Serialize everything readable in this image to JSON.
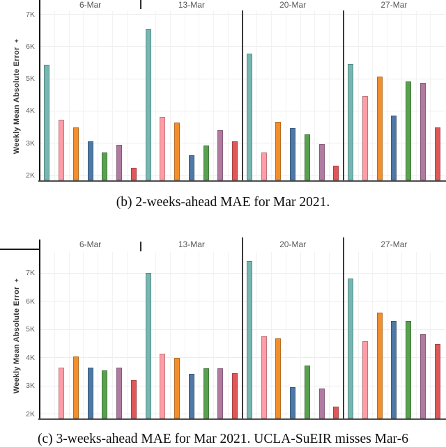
{
  "page": {
    "background": "#ffffff"
  },
  "chart_data": [
    {
      "type": "bar",
      "title": "",
      "caption": "(b) 2-weeks-ahead MAE for Mar 2021.",
      "ylabel": "Weekly Mean Absolute Error",
      "ylabel_icon": "✦",
      "xlabel": "",
      "categories": [
        "6-Mar",
        "13-Mar",
        "20-Mar",
        "27-Mar"
      ],
      "ytick_labels": [
        "2K",
        "3K",
        "4K",
        "5K",
        "6K",
        "7K"
      ],
      "ytick_values": [
        2000,
        3000,
        4000,
        5000,
        6000,
        7000
      ],
      "ylim": [
        1850,
        7100
      ],
      "grid": true,
      "legend": "none",
      "series": [
        {
          "name": "teal",
          "color": "#76b7b2",
          "values": [
            5440,
            6530,
            5780,
            5450
          ]
        },
        {
          "name": "pink",
          "color": "#ff9da7",
          "values": [
            3740,
            3820,
            2720,
            4470
          ]
        },
        {
          "name": "orange",
          "color": "#f28e2b",
          "values": [
            3500,
            3650,
            3670,
            5070
          ]
        },
        {
          "name": "blue",
          "color": "#4e79a7",
          "values": [
            3060,
            2620,
            3480,
            3870
          ]
        },
        {
          "name": "green",
          "color": "#59a14f",
          "values": [
            2720,
            2930,
            3270,
            4920
          ]
        },
        {
          "name": "purple",
          "color": "#b07aa1",
          "values": [
            2950,
            3400,
            2980,
            4870
          ]
        },
        {
          "name": "red",
          "color": "#e15759",
          "values": [
            2240,
            3050,
            2300,
            3500
          ]
        }
      ]
    },
    {
      "type": "bar",
      "title": "",
      "caption": "(c) 3-weeks-ahead MAE for Mar 2021. UCLA-SuEIR misses Mar-6",
      "ylabel": "Weekly Mean Absolute Error",
      "ylabel_icon": "✦",
      "xlabel": "",
      "categories": [
        "6-Mar",
        "13-Mar",
        "20-Mar",
        "27-Mar"
      ],
      "ytick_labels": [
        "2K",
        "3K",
        "4K",
        "5K",
        "6K",
        "7K"
      ],
      "ytick_values": [
        2000,
        3000,
        4000,
        5000,
        6000,
        7000
      ],
      "ylim": [
        1850,
        7750
      ],
      "grid": true,
      "legend": "none",
      "series": [
        {
          "name": "teal",
          "color": "#76b7b2",
          "values": [
            null,
            7000,
            7440,
            6800
          ]
        },
        {
          "name": "pink",
          "color": "#ff9da7",
          "values": [
            3650,
            4150,
            4760,
            4600
          ]
        },
        {
          "name": "orange",
          "color": "#f28e2b",
          "values": [
            4050,
            4010,
            4680,
            5600
          ]
        },
        {
          "name": "blue",
          "color": "#4e79a7",
          "values": [
            3650,
            3440,
            2960,
            5300
          ]
        },
        {
          "name": "green",
          "color": "#59a14f",
          "values": [
            3560,
            3630,
            3720,
            5310
          ]
        },
        {
          "name": "purple",
          "color": "#b07aa1",
          "values": [
            3640,
            3620,
            2920,
            4840
          ]
        },
        {
          "name": "red",
          "color": "#e15759",
          "values": [
            3200,
            3450,
            2260,
            4480
          ]
        }
      ]
    }
  ]
}
